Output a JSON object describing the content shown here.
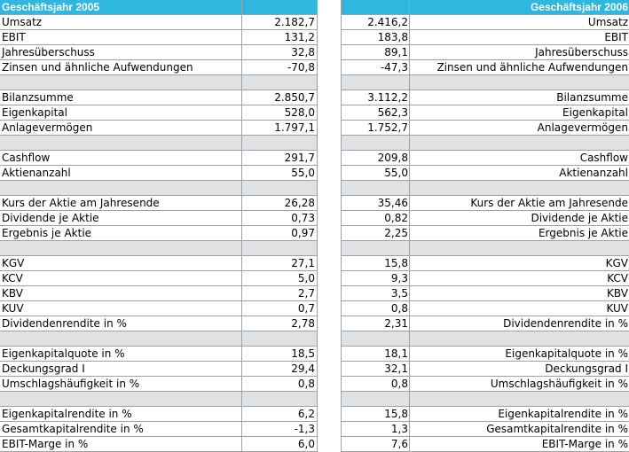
{
  "header": {
    "left_title": "Geschäftsjahr 2005",
    "right_title": "Geschäftsjahr 2006"
  },
  "groups": [
    {
      "rows": [
        {
          "label": "Umsatz",
          "v2005": "2.182,7",
          "v2006": "2.416,2"
        },
        {
          "label": "EBIT",
          "v2005": "131,2",
          "v2006": "183,8"
        },
        {
          "label": "Jahresüberschuss",
          "v2005": "32,8",
          "v2006": "89,1"
        },
        {
          "label": "Zinsen und ähnliche Aufwendungen",
          "v2005": "-70,8",
          "v2006": "-47,3"
        }
      ]
    },
    {
      "rows": [
        {
          "label": "Bilanzsumme",
          "v2005": "2.850,7",
          "v2006": "3.112,2"
        },
        {
          "label": "Eigenkapital",
          "v2005": "528,0",
          "v2006": "562,3"
        },
        {
          "label": "Anlagevermögen",
          "v2005": "1.797,1",
          "v2006": "1.752,7"
        }
      ]
    },
    {
      "rows": [
        {
          "label": "Cashflow",
          "v2005": "291,7",
          "v2006": "209,8"
        },
        {
          "label": "Aktienanzahl",
          "v2005": "55,0",
          "v2006": "55,0"
        }
      ]
    },
    {
      "rows": [
        {
          "label": "Kurs der Aktie am Jahresende",
          "v2005": "26,28",
          "v2006": "35,46"
        },
        {
          "label": "Dividende je Aktie",
          "v2005": "0,73",
          "v2006": "0,82"
        },
        {
          "label": "Ergebnis je Aktie",
          "v2005": "0,97",
          "v2006": "2,25"
        }
      ]
    },
    {
      "rows": [
        {
          "label": "KGV",
          "v2005": "27,1",
          "v2006": "15,8"
        },
        {
          "label": "KCV",
          "v2005": "5,0",
          "v2006": "9,3"
        },
        {
          "label": "KBV",
          "v2005": "2,7",
          "v2006": "3,5"
        },
        {
          "label": "KUV",
          "v2005": "0,7",
          "v2006": "0,8"
        },
        {
          "label": "Dividendenrendite in %",
          "v2005": "2,78",
          "v2006": "2,31"
        }
      ]
    },
    {
      "rows": [
        {
          "label": "Eigenkapitalquote in %",
          "v2005": "18,5",
          "v2006": "18,1"
        },
        {
          "label": "Deckungsgrad I",
          "v2005": "29,4",
          "v2006": "32,1"
        },
        {
          "label": "Umschlagshäufigkeit in %",
          "v2005": "0,8",
          "v2006": "0,8"
        }
      ]
    },
    {
      "rows": [
        {
          "label": "Eigenkapitalrendite in %",
          "v2005": "6,2",
          "v2006": "15,8"
        },
        {
          "label": "Gesamtkapitalrendite in %",
          "v2005": "-1,3",
          "v2006": "1,3"
        },
        {
          "label": "EBIT-Marge in %",
          "v2005": "6,0",
          "v2006": "7,6"
        }
      ]
    }
  ]
}
